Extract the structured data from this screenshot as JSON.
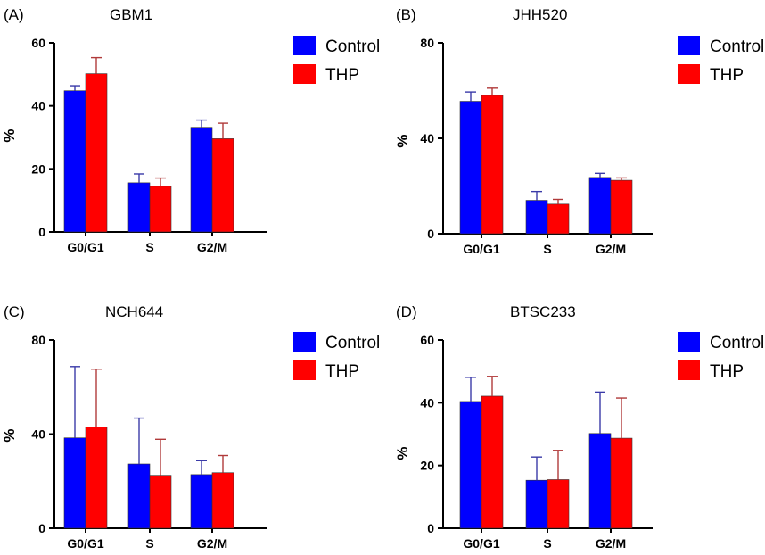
{
  "chart_data": [
    {
      "type": "bar",
      "panel_label": "(A)",
      "title": "GBM1",
      "ylabel": "%",
      "xlabel": "",
      "ylim": [
        0,
        60
      ],
      "yticks": [
        0,
        20,
        40,
        60
      ],
      "categories": [
        "G0/G1",
        "S",
        "G2/M"
      ],
      "series": [
        {
          "name": "Control",
          "color": "#0000ff",
          "values": [
            44.8,
            15.6,
            33.2
          ],
          "errors": [
            1.6,
            2.8,
            2.3
          ]
        },
        {
          "name": "THP",
          "color": "#ff0000",
          "values": [
            50.2,
            14.5,
            29.6
          ],
          "errors": [
            5.1,
            2.6,
            4.9
          ]
        }
      ],
      "legend_position": "top-right"
    },
    {
      "type": "bar",
      "panel_label": "(B)",
      "title": "JHH520",
      "ylabel": "%",
      "xlabel": "",
      "ylim": [
        0,
        80
      ],
      "yticks": [
        0,
        40,
        80
      ],
      "categories": [
        "G0/G1",
        "S",
        "G2/M"
      ],
      "series": [
        {
          "name": "Control",
          "color": "#0000ff",
          "values": [
            55.5,
            14.0,
            23.6
          ],
          "errors": [
            3.9,
            3.7,
            1.7
          ]
        },
        {
          "name": "THP",
          "color": "#ff0000",
          "values": [
            58.0,
            12.4,
            22.4
          ],
          "errors": [
            3.0,
            2.0,
            1.0
          ]
        }
      ],
      "legend_position": "top-right"
    },
    {
      "type": "bar",
      "panel_label": "(C)",
      "title": "NCH644",
      "ylabel": "%",
      "xlabel": "",
      "ylim": [
        0,
        80
      ],
      "yticks": [
        0,
        40,
        80
      ],
      "categories": [
        "G0/G1",
        "S",
        "G2/M"
      ],
      "series": [
        {
          "name": "Control",
          "color": "#0000ff",
          "values": [
            38.4,
            27.3,
            22.8
          ],
          "errors": [
            30.3,
            19.5,
            5.9
          ]
        },
        {
          "name": "THP",
          "color": "#ff0000",
          "values": [
            43.0,
            22.5,
            23.6
          ],
          "errors": [
            24.6,
            15.3,
            7.3
          ]
        }
      ],
      "legend_position": "top-right"
    },
    {
      "type": "bar",
      "panel_label": "(D)",
      "title": "BTSC233",
      "ylabel": "%",
      "xlabel": "",
      "ylim": [
        0,
        60
      ],
      "yticks": [
        0,
        20,
        40,
        60
      ],
      "categories": [
        "G0/G1",
        "S",
        "G2/M"
      ],
      "series": [
        {
          "name": "Control",
          "color": "#0000ff",
          "values": [
            40.4,
            15.3,
            30.2
          ],
          "errors": [
            7.7,
            7.4,
            13.2
          ]
        },
        {
          "name": "THP",
          "color": "#ff0000",
          "values": [
            42.1,
            15.5,
            28.7
          ],
          "errors": [
            6.3,
            9.3,
            12.8
          ]
        }
      ],
      "legend_position": "top-right"
    }
  ]
}
